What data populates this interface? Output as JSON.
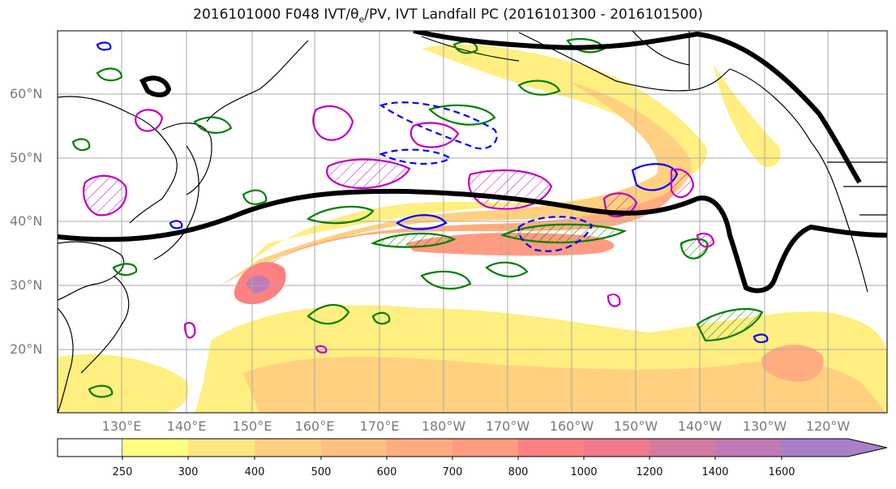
{
  "title": {
    "prefix": "2016101000 F048 IVT/",
    "symbol": "θ",
    "subscript": "e",
    "suffix": "/PV, IVT Landfall PC (2016101300 - 2016101500)"
  },
  "lat_labels": [
    "60°N",
    "50°N",
    "40°N",
    "30°N",
    "20°N"
  ],
  "lon_labels": [
    "130°E",
    "140°E",
    "150°E",
    "160°E",
    "170°E",
    "180°W",
    "170°W",
    "160°W",
    "150°W",
    "140°W",
    "130°W",
    "120°W"
  ],
  "colorbar": {
    "ticks": [
      "250",
      "300",
      "400",
      "500",
      "600",
      "700",
      "800",
      "1000",
      "1200",
      "1400",
      "1600"
    ],
    "colors": [
      "#ffffff",
      "#ffff80",
      "#ffe680",
      "#ffd080",
      "#ffbf80",
      "#ffad80",
      "#ff9b80",
      "#ff8080",
      "#f07a8a",
      "#d47aa0",
      "#c07ab8",
      "#a880c8"
    ]
  },
  "colors": {
    "ivt_low": "#ffee80",
    "ivt_mid": "#ffbf80",
    "ivt_high": "#ff9b80",
    "pv_contour": "#008000",
    "theta_e_contour": "#0000ff",
    "landfall_contour": "#c000c0",
    "pc_line": "#000000",
    "coast": "#000000",
    "grid": "#aaaaaa"
  },
  "chart_data": {
    "type": "heatmap",
    "title": "2016101000 F048 IVT/θe/PV, IVT Landfall PC (2016101300 - 2016101500)",
    "lat_ticks": [
      60,
      50,
      40,
      30,
      20
    ],
    "lon_ticks": [
      "130°E",
      "140°E",
      "150°E",
      "160°E",
      "170°E",
      "180°W",
      "170°W",
      "160°W",
      "150°W",
      "140°W",
      "130°W",
      "120°W"
    ],
    "colorbar_levels": [
      250,
      300,
      400,
      500,
      600,
      700,
      800,
      1000,
      1200,
      1400,
      1600
    ],
    "max_ivt_region": "near 30°N 150°E",
    "grid": true
  }
}
